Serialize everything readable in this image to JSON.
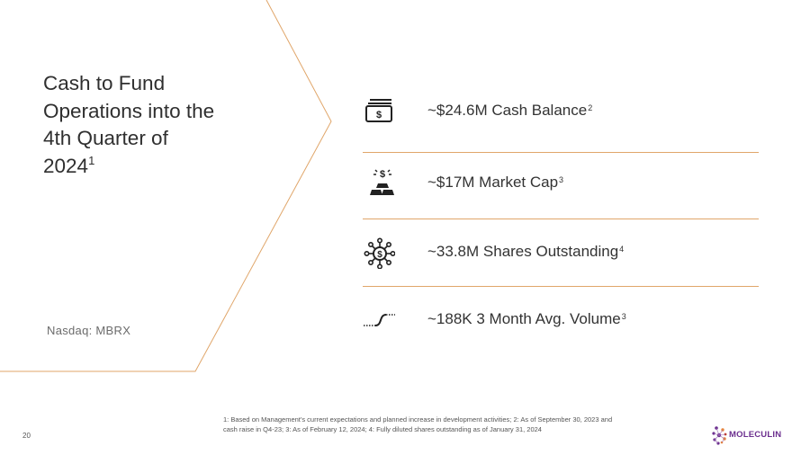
{
  "title": {
    "text": "Cash to Fund Operations into the 4th Quarter of 2024",
    "superscript": "1"
  },
  "exchange_label": "Nasdaq:  MBRX",
  "metrics": [
    {
      "icon": "cash-icon",
      "text": "~$24.6M Cash Balance",
      "superscript": "2"
    },
    {
      "icon": "gold-bars-icon",
      "text": "~$17M Market Cap",
      "superscript": "3"
    },
    {
      "icon": "dollar-network-icon",
      "text": "~33.8M Shares Outstanding",
      "superscript": "4"
    },
    {
      "icon": "trend-curve-icon",
      "text": "~188K 3 Month Avg. Volume",
      "superscript": "3"
    }
  ],
  "page_number": "20",
  "footnote": "1: Based on Management's current expectations and planned increase in development activities; 2: As of September 30, 2023 and cash raise in Q4-23; 3: As of February 12, 2024; 4: Fully diluted shares outstanding as of January 31, 2024",
  "logo": {
    "text": "MOLECULIN",
    "icon": "molecule-logo-icon"
  },
  "colors": {
    "accent_line": "#e0a66a",
    "brand_purple": "#6b2e8e",
    "brand_orange": "#e8843a"
  }
}
